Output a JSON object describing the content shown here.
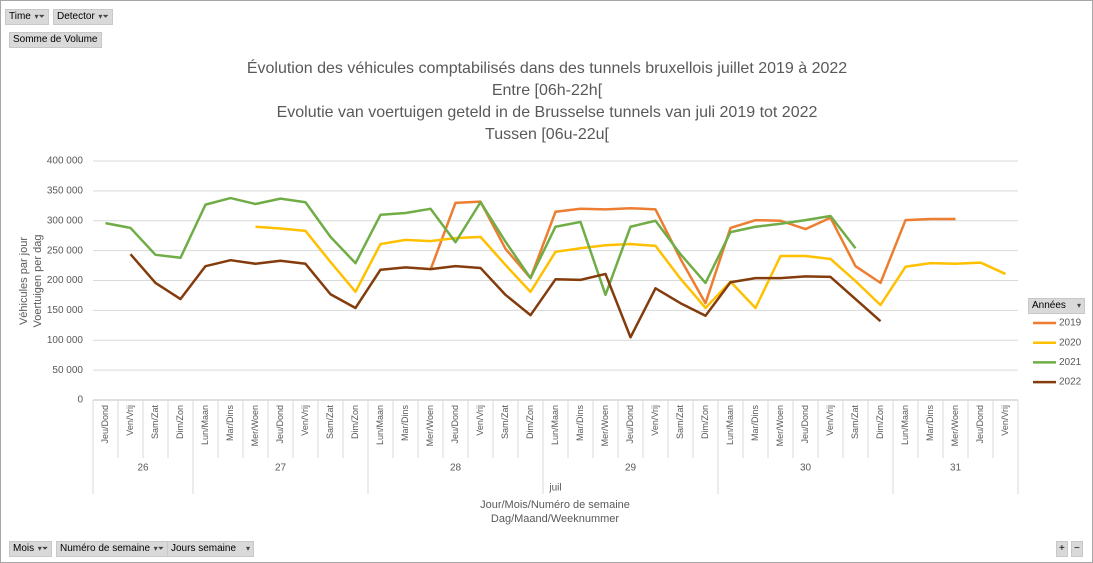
{
  "ui": {
    "filters_top": [
      "Time",
      "Detector"
    ],
    "value_field": "Somme de Volume",
    "filters_bottom": [
      "Mois",
      "Numéro de semaine",
      "Jours semaine"
    ],
    "legend_field": "Années",
    "zoom": [
      "+",
      "−"
    ]
  },
  "chart_data": {
    "type": "line",
    "title": [
      "Évolution des véhicules comptabilisés dans des tunnels bruxellois juillet 2019 à 2022",
      "Entre [06h-22h[",
      "Evolutie van voertuigen geteld in de Brusselse tunnels van juli 2019 tot 2022",
      "Tussen [06u-22u["
    ],
    "y_label": [
      "Véhicules par jour",
      "Voertuigen per dag"
    ],
    "x_label": [
      "Jour/Mois/Numéro de semaine",
      "Dag/Maand/Weeknummer"
    ],
    "month": "juil",
    "categories": [
      [
        "Jeu/Dond",
        "26"
      ],
      [
        "Ven/Vrij",
        "26"
      ],
      [
        "Sam/Zat",
        "26"
      ],
      [
        "Dim/Zon",
        "26"
      ],
      [
        "Lun/Maan",
        "27"
      ],
      [
        "Mar/Dins",
        "27"
      ],
      [
        "Mer/Woen",
        "27"
      ],
      [
        "Jeu/Dond",
        "27"
      ],
      [
        "Ven/Vrij",
        "27"
      ],
      [
        "Sam/Zat",
        "27"
      ],
      [
        "Dim/Zon",
        "27"
      ],
      [
        "Lun/Maan",
        "28"
      ],
      [
        "Mar/Dins",
        "28"
      ],
      [
        "Mer/Woen",
        "28"
      ],
      [
        "Jeu/Dond",
        "28"
      ],
      [
        "Ven/Vrij",
        "28"
      ],
      [
        "Sam/Zat",
        "28"
      ],
      [
        "Dim/Zon",
        "28"
      ],
      [
        "Lun/Maan",
        "29"
      ],
      [
        "Mar/Dins",
        "29"
      ],
      [
        "Mer/Woen",
        "29"
      ],
      [
        "Jeu/Dond",
        "29"
      ],
      [
        "Ven/Vrij",
        "29"
      ],
      [
        "Sam/Zat",
        "29"
      ],
      [
        "Dim/Zon",
        "29"
      ],
      [
        "Lun/Maan",
        "30"
      ],
      [
        "Mar/Dins",
        "30"
      ],
      [
        "Mer/Woen",
        "30"
      ],
      [
        "Jeu/Dond",
        "30"
      ],
      [
        "Ven/Vrij",
        "30"
      ],
      [
        "Sam/Zat",
        "30"
      ],
      [
        "Dim/Zon",
        "30"
      ],
      [
        "Lun/Maan",
        "31"
      ],
      [
        "Mar/Dins",
        "31"
      ],
      [
        "Mer/Woen",
        "31"
      ],
      [
        "Jeu/Dond",
        "31"
      ],
      [
        "Ven/Vrij",
        "31"
      ]
    ],
    "series": [
      {
        "name": "2019",
        "color": "#ed7d31",
        "values": [
          null,
          null,
          null,
          null,
          null,
          null,
          null,
          null,
          null,
          null,
          null,
          null,
          null,
          218000,
          330000,
          332000,
          253000,
          204000,
          315000,
          320000,
          319000,
          321000,
          319000,
          236000,
          162000,
          288000,
          301000,
          300000,
          286000,
          305000,
          224000,
          196000,
          301000,
          303000,
          303000,
          null,
          null
        ]
      },
      {
        "name": "2020",
        "color": "#ffc000",
        "values": [
          null,
          null,
          null,
          null,
          null,
          null,
          290000,
          287000,
          283000,
          231000,
          181000,
          261000,
          268000,
          266000,
          271000,
          273000,
          226000,
          181000,
          248000,
          254000,
          259000,
          261000,
          258000,
          203000,
          154000,
          198000,
          154000,
          241000,
          241000,
          236000,
          199000,
          159000,
          223000,
          229000,
          228000,
          230000,
          211000
        ]
      },
      {
        "name": "2021",
        "color": "#70ad47",
        "values": [
          296000,
          288000,
          243000,
          238000,
          327000,
          338000,
          328000,
          337000,
          331000,
          273000,
          229000,
          310000,
          313000,
          320000,
          264000,
          331000,
          265000,
          204000,
          290000,
          298000,
          176000,
          290000,
          300000,
          244000,
          196000,
          281000,
          290000,
          295000,
          301000,
          308000,
          254000,
          null,
          null,
          null,
          null,
          null,
          null
        ]
      },
      {
        "name": "2022",
        "color": "#843c0c",
        "values": [
          null,
          244000,
          196000,
          169000,
          224000,
          234000,
          228000,
          233000,
          228000,
          177000,
          154000,
          218000,
          222000,
          219000,
          224000,
          221000,
          176000,
          142000,
          202000,
          201000,
          211000,
          105000,
          187000,
          162000,
          141000,
          197000,
          204000,
          204000,
          207000,
          206000,
          169000,
          132000,
          null,
          null,
          null,
          null,
          null
        ]
      }
    ],
    "ylim": [
      0,
      400000
    ],
    "yticks": [
      0,
      {
        "value": 50000,
        "label": "50 000"
      },
      {
        "value": 100000,
        "label": "100 000"
      },
      {
        "value": 150000,
        "label": "150 000"
      },
      {
        "value": 200000,
        "label": "200 000"
      },
      {
        "value": 250000,
        "label": "250 000"
      },
      {
        "value": 300000,
        "label": "300 000"
      },
      {
        "value": 350000,
        "label": "350 000"
      },
      {
        "value": 400000,
        "label": "400 000"
      }
    ],
    "grid": true,
    "legend": "right"
  }
}
